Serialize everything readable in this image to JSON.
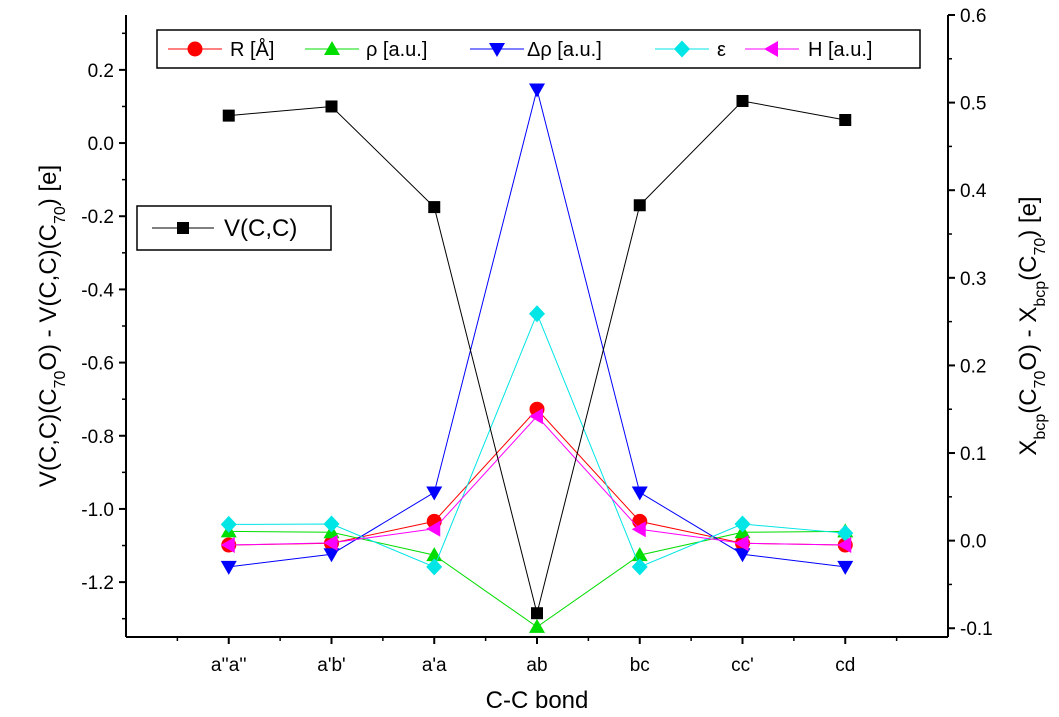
{
  "chart_data": {
    "type": "line",
    "xlabel": "C-C bond",
    "categories": [
      "a''a''",
      "a'b'",
      "a'a",
      "ab",
      "bc",
      "cc'",
      "cd"
    ],
    "left_axis": {
      "label_parts": [
        "V(C,C)(C",
        "70",
        "O) - V(C,C)(C",
        "70",
        ") [e]"
      ],
      "ylim": [
        -1.35,
        0.35
      ],
      "ticks": [
        0.2,
        0.0,
        -0.2,
        -0.4,
        -0.6,
        -0.8,
        -1.0,
        -1.2
      ],
      "tick_labels": [
        "0.2",
        "0.0",
        "-0.2",
        "-0.4",
        "-0.6",
        "-0.8",
        "-1.0",
        "-1.2"
      ]
    },
    "right_axis": {
      "label_parts": [
        "X",
        "bcp",
        "(C",
        "70",
        "O) - X",
        "bcp",
        "(C",
        "70",
        ") [e]"
      ],
      "ylim": [
        -0.11,
        0.6
      ],
      "ticks": [
        0.6,
        0.5,
        0.4,
        0.3,
        0.2,
        0.1,
        0.0,
        -0.1
      ],
      "tick_labels": [
        "0.6",
        "0.5",
        "0.4",
        "0.3",
        "0.2",
        "0.1",
        "0.0",
        "-0.1"
      ]
    },
    "series": [
      {
        "name": "V(C,C)",
        "axis": "left",
        "marker": "square",
        "color": "#000000",
        "values": [
          0.075,
          0.1,
          -0.175,
          -1.285,
          -0.17,
          0.115,
          0.063
        ]
      },
      {
        "name": "R [Å]",
        "axis": "right",
        "marker": "circle",
        "color": "#ff0000",
        "values": [
          -0.005,
          -0.003,
          0.022,
          0.15,
          0.022,
          -0.003,
          -0.005
        ]
      },
      {
        "name": "ρ [a.u.]",
        "axis": "right",
        "marker": "triangle-up",
        "color": "#00dd00",
        "values": [
          0.0105,
          0.0095,
          -0.0165,
          -0.0985,
          -0.0165,
          0.0095,
          0.0105
        ]
      },
      {
        "name": "Δρ [a.u.]",
        "axis": "right",
        "marker": "triangle-down",
        "color": "#0000ff",
        "values": [
          -0.03,
          -0.0155,
          0.055,
          0.515,
          0.055,
          -0.0155,
          -0.03
        ]
      },
      {
        "name": "ε",
        "axis": "right",
        "marker": "diamond",
        "color": "#00e5e5",
        "values": [
          0.0185,
          0.019,
          -0.03,
          0.259,
          -0.03,
          0.019,
          0.0085
        ]
      },
      {
        "name": "H  [a.u.]",
        "axis": "right",
        "marker": "triangle-left",
        "color": "#ff00ff",
        "values": [
          -0.005,
          -0.0025,
          0.0135,
          0.142,
          0.013,
          -0.003,
          -0.005
        ]
      }
    ],
    "legend_top": [
      "R [Å]",
      "ρ [a.u.]",
      "Δρ [a.u.]",
      "ε",
      "H  [a.u.]"
    ],
    "legend_left": [
      "V(C,C)"
    ]
  }
}
